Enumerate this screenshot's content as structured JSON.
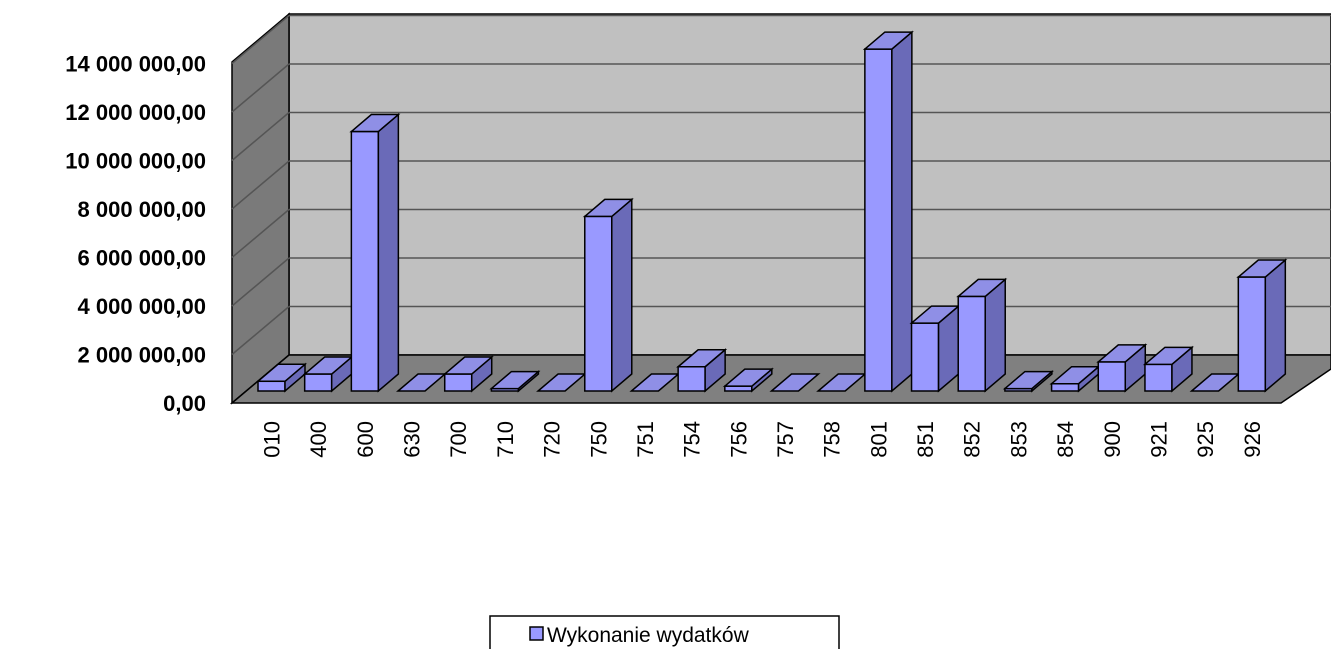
{
  "chart_data": {
    "type": "bar",
    "title": "",
    "xlabel": "",
    "ylabel": "",
    "categories": [
      "010",
      "400",
      "600",
      "630",
      "700",
      "710",
      "720",
      "750",
      "751",
      "754",
      "756",
      "757",
      "758",
      "801",
      "851",
      "852",
      "853",
      "854",
      "900",
      "921",
      "925",
      "926"
    ],
    "series": [
      {
        "name": "Wykonanie wydatków",
        "color": "#9999ff",
        "values": [
          400000,
          700000,
          10700000,
          0,
          700000,
          100000,
          0,
          7200000,
          0,
          1000000,
          200000,
          0,
          0,
          14100000,
          2800000,
          3900000,
          100000,
          300000,
          1200000,
          1100000,
          0,
          4700000
        ]
      }
    ],
    "y_ticks": [
      "0,00",
      "2 000 000,00",
      "4 000 000,00",
      "6 000 000,00",
      "8 000 000,00",
      "10 000 000,00",
      "12 000 000,00",
      "14 000 000,00"
    ],
    "ylim": [
      0,
      14000000
    ],
    "grid": true,
    "three_d": true,
    "legend_position": "bottom",
    "colors": {
      "bar_front": "#9999ff",
      "bar_top": "#8f8fe6",
      "bar_side": "#6a6ab8",
      "wall_back": "#c0c0c0",
      "wall_side": "#7a7a7a",
      "floor": "#808080"
    }
  }
}
